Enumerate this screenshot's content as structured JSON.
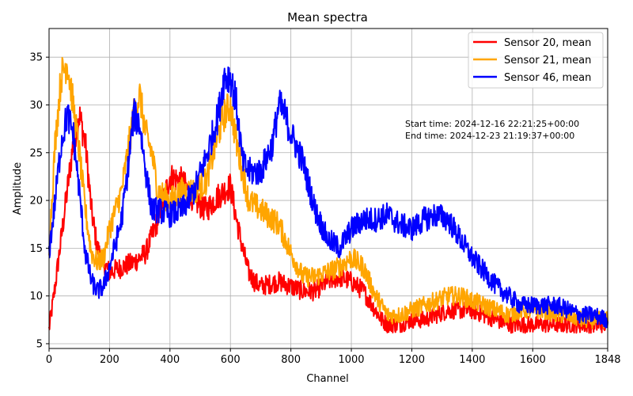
{
  "chart_data": {
    "type": "line",
    "title": "Mean spectra",
    "xlabel": "Channel",
    "ylabel": "Amplitude",
    "xlim": [
      0,
      1848
    ],
    "ylim": [
      4.5,
      38
    ],
    "xticks": [
      0,
      200,
      400,
      600,
      800,
      1000,
      1200,
      1400,
      1600,
      1848
    ],
    "yticks": [
      5,
      10,
      15,
      20,
      25,
      30,
      35
    ],
    "grid": true,
    "legend_position": "top-right",
    "annotation": {
      "lines": [
        "Start time: 2024-12-16 22:21:25+00:00",
        "End time: 2024-12-23 21:19:37+00:00"
      ]
    },
    "series": [
      {
        "name": "Sensor 20, mean",
        "color": "#ff0000",
        "x": [
          0,
          20,
          40,
          60,
          80,
          100,
          120,
          140,
          160,
          180,
          200,
          240,
          280,
          320,
          360,
          400,
          440,
          480,
          520,
          560,
          600,
          620,
          640,
          660,
          680,
          700,
          760,
          800,
          840,
          880,
          920,
          960,
          1000,
          1040,
          1080,
          1100,
          1120,
          1160,
          1200,
          1240,
          1280,
          1320,
          1360,
          1400,
          1440,
          1480,
          1520,
          1560,
          1600,
          1640,
          1680,
          1720,
          1760,
          1800,
          1848
        ],
        "y": [
          6.5,
          11,
          16,
          21,
          26,
          29,
          26,
          19,
          15,
          13.5,
          12.5,
          13,
          13.5,
          14.5,
          18,
          22.5,
          22,
          20,
          19,
          20.5,
          21.5,
          18,
          15,
          12.5,
          11.5,
          11,
          11.5,
          11,
          10.5,
          10.5,
          11.5,
          12,
          11.5,
          10.5,
          8.5,
          7.5,
          7,
          7,
          7.5,
          7.5,
          8,
          8.5,
          8.5,
          8.5,
          8,
          7.5,
          7,
          7,
          7,
          7,
          7,
          7,
          7,
          7,
          7
        ]
      },
      {
        "name": "Sensor 21, mean",
        "color": "#ffa500",
        "x": [
          0,
          20,
          40,
          60,
          80,
          100,
          120,
          140,
          160,
          180,
          200,
          240,
          260,
          280,
          300,
          320,
          340,
          360,
          400,
          440,
          480,
          520,
          560,
          580,
          600,
          620,
          640,
          660,
          700,
          760,
          800,
          840,
          880,
          920,
          960,
          1000,
          1040,
          1080,
          1100,
          1120,
          1160,
          1200,
          1240,
          1280,
          1320,
          1360,
          1400,
          1440,
          1480,
          1520,
          1560,
          1600,
          1640,
          1680,
          1720,
          1760,
          1800,
          1848
        ],
        "y": [
          15,
          26,
          33,
          34.5,
          30,
          25,
          19,
          14.5,
          13.5,
          14,
          17,
          21,
          25,
          29,
          31,
          27,
          25,
          21,
          20,
          21,
          21,
          22,
          27,
          29,
          30,
          26,
          23,
          20,
          19,
          17.5,
          14.5,
          12,
          12,
          12.5,
          13,
          14,
          13,
          10,
          9,
          8,
          8,
          8.5,
          9,
          9.5,
          10,
          10,
          9.5,
          9,
          8.5,
          8,
          8.5,
          8.5,
          8.5,
          8,
          8,
          7.5,
          7.5,
          7.5
        ]
      },
      {
        "name": "Sensor 46, mean",
        "color": "#0000ff",
        "x": [
          0,
          20,
          40,
          60,
          80,
          100,
          120,
          140,
          160,
          180,
          200,
          240,
          260,
          280,
          300,
          320,
          340,
          360,
          400,
          440,
          480,
          520,
          560,
          580,
          600,
          620,
          640,
          660,
          700,
          740,
          760,
          780,
          800,
          840,
          880,
          920,
          960,
          1000,
          1040,
          1080,
          1120,
          1160,
          1200,
          1240,
          1280,
          1320,
          1360,
          1400,
          1440,
          1480,
          1520,
          1560,
          1600,
          1640,
          1680,
          1720,
          1760,
          1800,
          1848
        ],
        "y": [
          14.5,
          20,
          26,
          29,
          27,
          21,
          14.5,
          11.5,
          10.5,
          11,
          13,
          18,
          23,
          29,
          28,
          23,
          19,
          19,
          18.5,
          19,
          21,
          24.5,
          29,
          33,
          33,
          30,
          24,
          23,
          23,
          26,
          30,
          29,
          27,
          24,
          19,
          16,
          15,
          17,
          18,
          18,
          18.5,
          17.5,
          17,
          18,
          18.5,
          18,
          16,
          14,
          12.5,
          11,
          10,
          9,
          9,
          9,
          9,
          8.5,
          8,
          8,
          7.5
        ]
      }
    ]
  }
}
